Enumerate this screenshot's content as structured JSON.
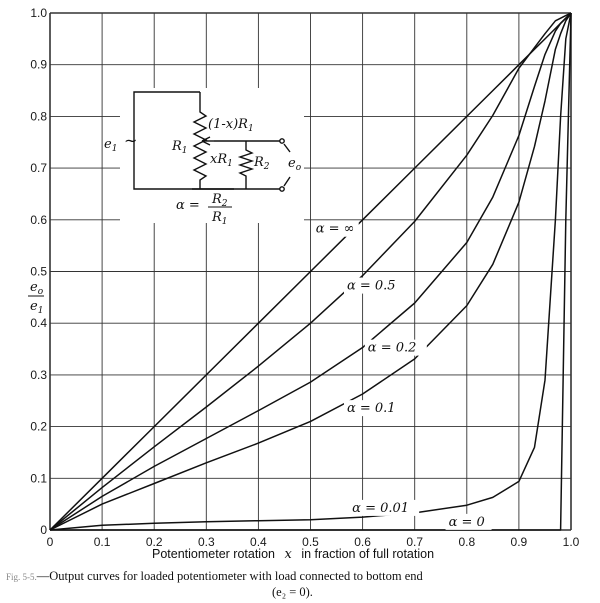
{
  "chart_data": {
    "type": "line",
    "xlim": [
      0,
      1
    ],
    "ylim": [
      0,
      1
    ],
    "xticks": [
      "0",
      "0.1",
      "0.2",
      "0.3",
      "0.4",
      "0.5",
      "0.6",
      "0.7",
      "0.8",
      "0.9",
      "1.0"
    ],
    "yticks": [
      "0",
      "0.1",
      "0.2",
      "0.3",
      "0.4",
      "0.5",
      "0.6",
      "0.7",
      "0.8",
      "0.9",
      "1.0"
    ],
    "xlabel_main": "Potentiometer rotation",
    "xlabel_var": "x",
    "xlabel_rest": "in fraction of full rotation",
    "ylabel_num": "e",
    "ylabel_num_sub": "o",
    "ylabel_den": "e",
    "ylabel_den_sub": "1",
    "grid": true,
    "x": [
      0,
      0.1,
      0.2,
      0.3,
      0.4,
      0.5,
      0.6,
      0.7,
      0.8,
      0.85,
      0.9,
      0.93,
      0.95,
      0.97,
      0.98,
      0.99,
      1.0
    ],
    "series": [
      {
        "name": "α = ∞",
        "values": [
          0,
          0.1,
          0.2,
          0.3,
          0.4,
          0.5,
          0.6,
          0.7,
          0.8,
          0.85,
          0.9,
          0.93,
          0.95,
          0.97,
          0.98,
          0.99,
          1.0
        ]
      },
      {
        "name": "α = 0.5",
        "values": [
          0,
          0.082,
          0.161,
          0.238,
          0.317,
          0.4,
          0.492,
          0.597,
          0.725,
          0.802,
          0.893,
          0.933,
          0.96,
          0.985,
          0.99,
          0.995,
          1.0
        ]
      },
      {
        "name": "α = 0.2",
        "values": [
          0,
          0.065,
          0.123,
          0.177,
          0.231,
          0.286,
          0.353,
          0.439,
          0.556,
          0.644,
          0.763,
          0.858,
          0.92,
          0.965,
          0.98,
          0.99,
          1.0
        ]
      },
      {
        "name": "α = 0.1",
        "values": [
          0,
          0.05,
          0.09,
          0.13,
          0.168,
          0.21,
          0.263,
          0.331,
          0.434,
          0.514,
          0.634,
          0.742,
          0.83,
          0.93,
          0.96,
          0.985,
          1.0
        ]
      },
      {
        "name": "α = 0.01",
        "values": [
          0,
          0.009,
          0.013,
          0.016,
          0.018,
          0.02,
          0.025,
          0.033,
          0.048,
          0.063,
          0.094,
          0.16,
          0.29,
          0.6,
          0.8,
          0.95,
          1.0
        ]
      },
      {
        "name": "α = 0",
        "values": [
          0,
          0,
          0,
          0,
          0,
          0,
          0,
          0,
          0,
          0,
          0,
          0,
          0,
          0,
          0,
          0.6,
          1.0
        ]
      }
    ],
    "annotations": [
      {
        "text": "α = ∞",
        "x": 0.51,
        "y": 0.575
      },
      {
        "text": "α = 0.5",
        "x": 0.57,
        "y": 0.465
      },
      {
        "text": "α = 0.2",
        "x": 0.61,
        "y": 0.345
      },
      {
        "text": "α = 0.1",
        "x": 0.57,
        "y": 0.228
      },
      {
        "text": "α = 0.01",
        "x": 0.58,
        "y": 0.035
      },
      {
        "text": "α = 0",
        "x": 0.765,
        "y": 0.008
      }
    ]
  },
  "inset": {
    "source": "e",
    "source_sub": "1",
    "source_symbol": "~",
    "label_top_pre": "(1-",
    "label_top_var": "x",
    "label_top_post": ")R",
    "label_top_sub": "1",
    "label_r1": "R",
    "label_r1_sub": "1",
    "label_xr1_var": "x",
    "label_xr1": "R",
    "label_xr1_sub": "1",
    "label_r2": "R",
    "label_r2_sub": "2",
    "label_out": "e",
    "label_out_sub": "o",
    "alpha_lhs": "α =",
    "alpha_num": "R",
    "alpha_num_sub": "2",
    "alpha_den": "R",
    "alpha_den_sub": "1"
  },
  "caption": {
    "prefix": "Fig. 5-5.",
    "line1": "—Output curves for loaded potentiometer with load connected to bottom end",
    "line2": "(e₂ = 0)."
  }
}
